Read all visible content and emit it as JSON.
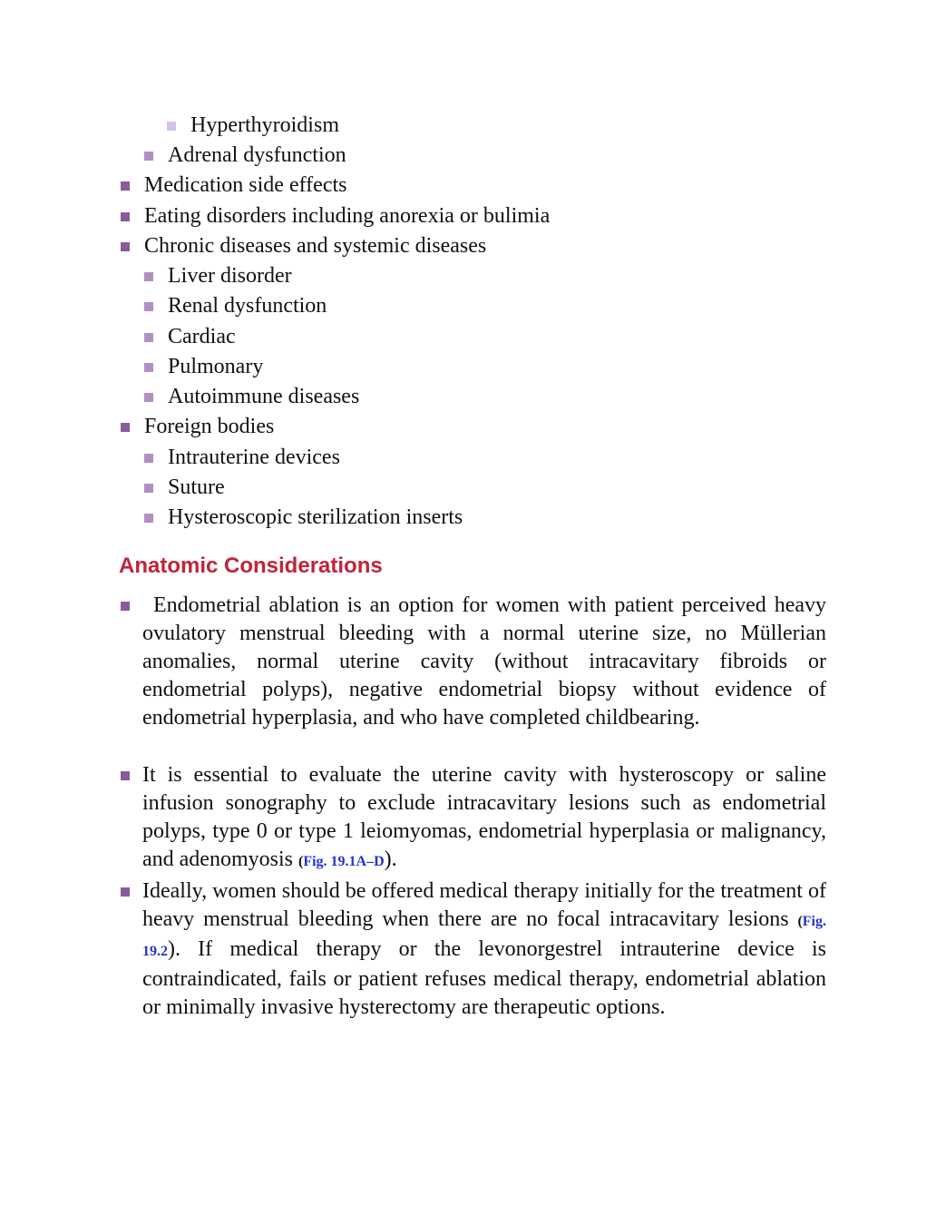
{
  "list": [
    "Hyperthyroidism",
    "Adrenal dysfunction",
    "Medication side effects",
    "Eating disorders including anorexia or bulimia",
    "Chronic diseases and systemic diseases",
    "Liver disorder",
    "Renal dysfunction",
    "Cardiac",
    "Pulmonary",
    "Autoimmune diseases",
    "Foreign bodies",
    "Intrauterine devices",
    "Suture",
    "Hysteroscopic sterilization inserts"
  ],
  "section": {
    "heading": "Anatomic Considerations",
    "bullets": [
      [
        "Endometrial ablation is an option for women with patient perceived heavy ovulatory menstrual bleeding with a normal uterine size, no Müllerian anomalies, normal uterine cavity (without intracavitary fibroids or endometrial polyps), negative endometrial biopsy without evidence of endometrial hyperplasia, and who have completed childbearing."
      ],
      [
        "It is essential to evaluate the uterine cavity with hysteroscopy or saline infusion sonography to exclude intracavitary lesions such as endometrial polyps, type 0 or type 1 leiomyomas, endometrial hyperplasia or malignancy, and adenomyosis ",
        "(",
        "Fig. 19.1A–D",
        ")."
      ],
      [
        "Ideally, women should be offered medical therapy initially for the treatment of heavy menstrual bleeding when there are no focal intracavitary lesions ",
        "(",
        "Fig. 19.2",
        "). If medical therapy or the levonorgestrel intrauterine device is contraindicated, fails or patient refuses medical therapy, endometrial ablation or minimally invasive hysterectomy are therapeutic options."
      ]
    ]
  }
}
